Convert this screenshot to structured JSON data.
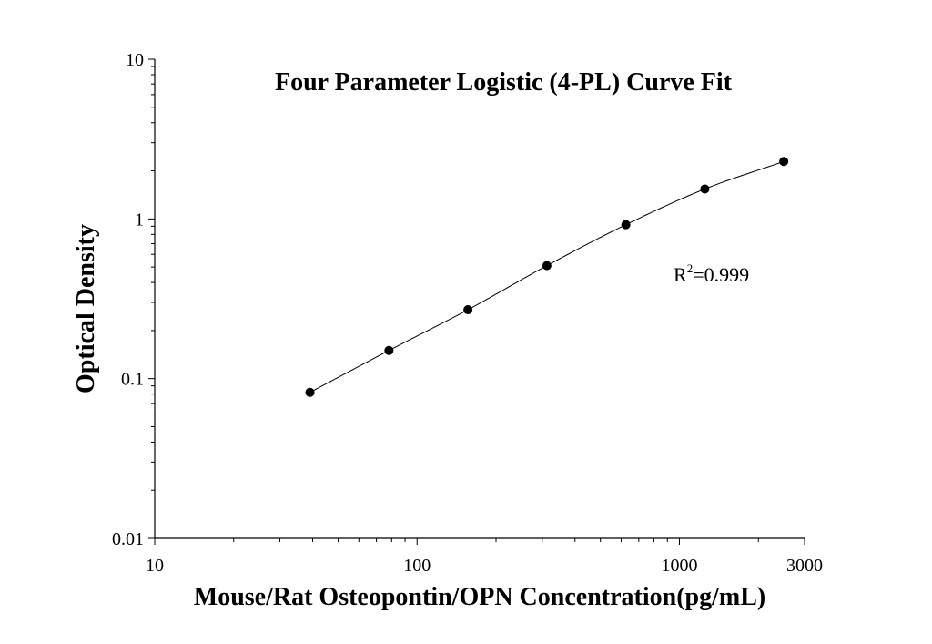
{
  "chart_data": {
    "type": "scatter",
    "title": "Four Parameter Logistic (4-PL) Curve Fit",
    "xlabel": "Mouse/Rat Osteopontin/OPN Concentration(pg/mL)",
    "ylabel": "Optical Density",
    "x_scale": "log",
    "y_scale": "log",
    "xlim": [
      10,
      3000
    ],
    "ylim": [
      0.01,
      10
    ],
    "x_ticks": [
      10,
      100,
      1000,
      3000
    ],
    "x_tick_labels": [
      "10",
      "100",
      "1000",
      "3000"
    ],
    "y_ticks": [
      0.01,
      0.1,
      1,
      10
    ],
    "y_tick_labels": [
      "0.01",
      "0.1",
      "1",
      "10"
    ],
    "grid": false,
    "series": [
      {
        "x": [
          39.06,
          78.13,
          156.25,
          312.5,
          625,
          1250,
          2500
        ],
        "y": [
          0.082,
          0.15,
          0.27,
          0.51,
          0.92,
          1.54,
          2.29
        ]
      }
    ],
    "annotation": {
      "prefix": "R",
      "superscript": "2",
      "suffix": "=0.999"
    },
    "colors": {
      "line": "#000000",
      "marker": "#000000"
    }
  }
}
